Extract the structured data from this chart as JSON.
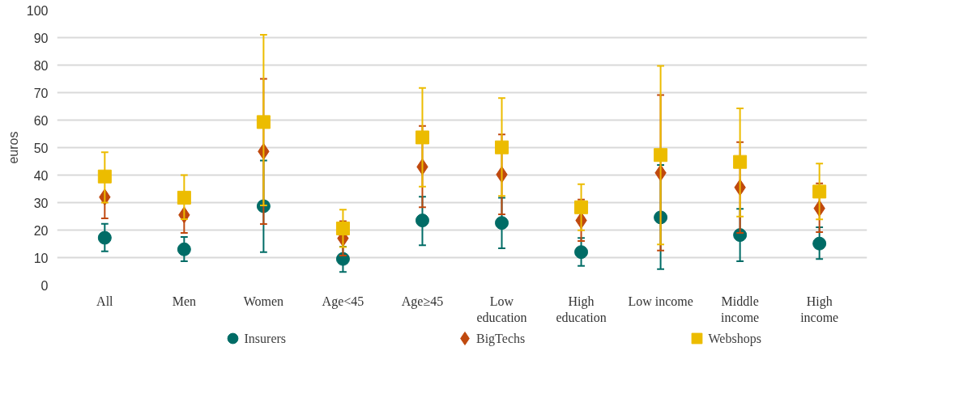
{
  "chart_data": {
    "type": "scatter",
    "ylabel": "euros",
    "categories": [
      "All",
      "Men",
      "Women",
      "Age<45",
      "Age≥45",
      "Low\neducation",
      "High\neducation",
      "Low income",
      "Middle\nincome",
      "High\nincome"
    ],
    "ylim": [
      0,
      100
    ],
    "yticks": [
      0,
      10,
      20,
      30,
      40,
      50,
      60,
      70,
      80,
      90,
      100
    ],
    "grid": "y",
    "legend": "bottom",
    "series": [
      {
        "name": "Insurers",
        "color": "#006c66",
        "marker": "circle",
        "values": [
          17.2,
          13,
          28.7,
          9.5,
          23.5,
          22.6,
          12,
          24.6,
          18.2,
          15.1
        ],
        "errors": [
          [
            12.3,
            22.3
          ],
          [
            8.7,
            17.5
          ],
          [
            12,
            45.3
          ],
          [
            4.8,
            14
          ],
          [
            14.5,
            32.1
          ],
          [
            13.4,
            31.8
          ],
          [
            7,
            17.1
          ],
          [
            5.8,
            43.7
          ],
          [
            8.7,
            27.7
          ],
          [
            9.5,
            21
          ]
        ]
      },
      {
        "name": "BigTechs",
        "color": "#c0490e",
        "marker": "diamond",
        "values": [
          32,
          25.5,
          48.6,
          17,
          43,
          40.2,
          23.5,
          40.8,
          35.5,
          27.9
        ],
        "errors": [
          [
            24.3,
            32
          ],
          [
            19,
            25.5
          ],
          [
            22.2,
            75
          ],
          [
            10.7,
            23.2
          ],
          [
            28.3,
            57.9
          ],
          [
            25.7,
            54.8
          ],
          [
            16,
            31.1
          ],
          [
            12.6,
            69.1
          ],
          [
            19,
            52
          ],
          [
            19.3,
            37
          ]
        ]
      },
      {
        "name": "Webshops",
        "color": "#ecbc00",
        "marker": "square",
        "values": [
          39.5,
          31.8,
          59.3,
          20.6,
          53.7,
          50.1,
          28.3,
          47.3,
          44.8,
          34
        ],
        "errors": [
          [
            30,
            48.3
          ],
          [
            24,
            40
          ],
          [
            29,
            91
          ],
          [
            13.8,
            27.4
          ],
          [
            35.8,
            71.7
          ],
          [
            32.4,
            68
          ],
          [
            19.9,
            36.7
          ],
          [
            14.8,
            79.7
          ],
          [
            24.9,
            64.3
          ],
          [
            23.9,
            44.2
          ]
        ]
      }
    ]
  }
}
